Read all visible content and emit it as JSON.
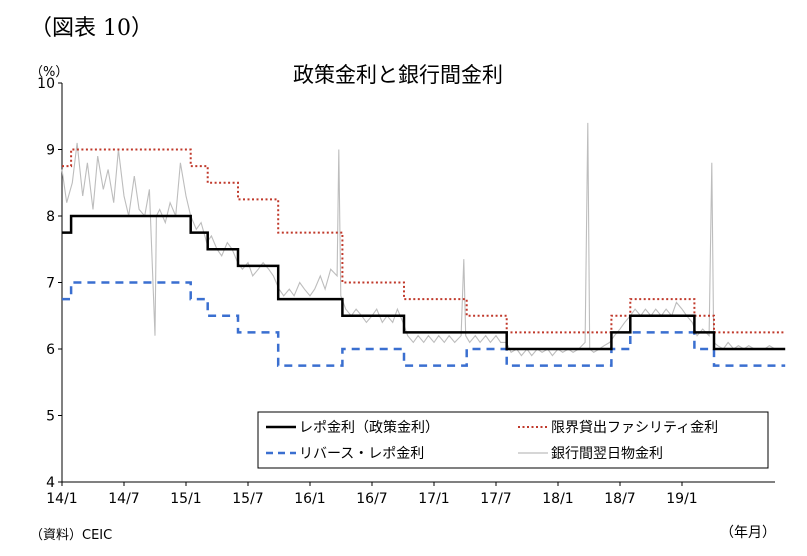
{
  "figure_label": "（図表 10）",
  "source_note": "（資料）CEIC",
  "chart_data": {
    "type": "line",
    "title": "政策金利と銀行間金利",
    "ylabel": "（%）",
    "xlabel": "（年月）",
    "ylim": [
      4,
      10
    ],
    "yticks": [
      4,
      5,
      6,
      7,
      8,
      9,
      10
    ],
    "xlim": [
      "2014-01",
      "2019-10"
    ],
    "xtick_labels": [
      "14/1",
      "14/7",
      "15/1",
      "15/7",
      "16/1",
      "16/7",
      "17/1",
      "17/7",
      "18/1",
      "18/7",
      "19/1"
    ],
    "grid": false,
    "legend_position": "bottom-right",
    "series": [
      {
        "name": "レポ金利（政策金利）",
        "style": "solid",
        "color": "#000000",
        "steps": [
          [
            "2014-01-01",
            7.75
          ],
          [
            "2014-01-28",
            8.0
          ],
          [
            "2015-01-15",
            7.75
          ],
          [
            "2015-03-04",
            7.5
          ],
          [
            "2015-06-02",
            7.25
          ],
          [
            "2015-09-29",
            6.75
          ],
          [
            "2016-04-05",
            6.5
          ],
          [
            "2016-10-04",
            6.25
          ],
          [
            "2017-08-02",
            6.0
          ],
          [
            "2018-06-06",
            6.25
          ],
          [
            "2018-08-01",
            6.5
          ],
          [
            "2019-02-07",
            6.25
          ],
          [
            "2019-04-04",
            6.0
          ],
          [
            "2019-10-31",
            6.0
          ]
        ]
      },
      {
        "name": "限界貸出ファシリティ金利",
        "style": "dotted",
        "color": "#c0392b",
        "steps": [
          [
            "2014-01-01",
            8.75
          ],
          [
            "2014-01-28",
            9.0
          ],
          [
            "2015-01-15",
            8.75
          ],
          [
            "2015-03-04",
            8.5
          ],
          [
            "2015-06-02",
            8.25
          ],
          [
            "2015-09-29",
            7.75
          ],
          [
            "2016-04-05",
            7.0
          ],
          [
            "2016-10-04",
            6.75
          ],
          [
            "2017-04-06",
            6.5
          ],
          [
            "2017-08-02",
            6.25
          ],
          [
            "2018-06-06",
            6.5
          ],
          [
            "2018-08-01",
            6.75
          ],
          [
            "2019-02-07",
            6.5
          ],
          [
            "2019-04-04",
            6.25
          ],
          [
            "2019-10-31",
            6.25
          ]
        ]
      },
      {
        "name": "リバース・レポ金利",
        "style": "dashed",
        "color": "#3a6fd0",
        "steps": [
          [
            "2014-01-01",
            6.75
          ],
          [
            "2014-01-28",
            7.0
          ],
          [
            "2015-01-15",
            6.75
          ],
          [
            "2015-03-04",
            6.5
          ],
          [
            "2015-06-02",
            6.25
          ],
          [
            "2015-09-29",
            5.75
          ],
          [
            "2016-04-05",
            6.0
          ],
          [
            "2016-10-04",
            5.75
          ],
          [
            "2017-04-06",
            6.0
          ],
          [
            "2017-08-02",
            5.75
          ],
          [
            "2018-06-06",
            6.0
          ],
          [
            "2018-08-01",
            6.25
          ],
          [
            "2019-02-07",
            6.0
          ],
          [
            "2019-04-04",
            5.75
          ],
          [
            "2019-10-31",
            5.75
          ]
        ]
      },
      {
        "name": "銀行間翌日物金利",
        "style": "solid",
        "color": "#bdbdbd",
        "points": [
          [
            "2014-01-01",
            8.7
          ],
          [
            "2014-01-15",
            8.2
          ],
          [
            "2014-02-01",
            8.5
          ],
          [
            "2014-02-15",
            9.1
          ],
          [
            "2014-03-01",
            8.3
          ],
          [
            "2014-03-15",
            8.8
          ],
          [
            "2014-04-01",
            8.1
          ],
          [
            "2014-04-15",
            8.9
          ],
          [
            "2014-05-01",
            8.4
          ],
          [
            "2014-05-15",
            8.7
          ],
          [
            "2014-06-01",
            8.2
          ],
          [
            "2014-06-15",
            9.0
          ],
          [
            "2014-07-01",
            8.3
          ],
          [
            "2014-07-15",
            8.0
          ],
          [
            "2014-08-01",
            8.6
          ],
          [
            "2014-08-15",
            8.1
          ],
          [
            "2014-09-01",
            8.0
          ],
          [
            "2014-09-15",
            8.4
          ],
          [
            "2014-10-01",
            6.2
          ],
          [
            "2014-10-05",
            8.0
          ],
          [
            "2014-10-15",
            8.1
          ],
          [
            "2014-11-01",
            7.9
          ],
          [
            "2014-11-15",
            8.2
          ],
          [
            "2014-12-01",
            8.0
          ],
          [
            "2014-12-15",
            8.8
          ],
          [
            "2015-01-01",
            8.3
          ],
          [
            "2015-01-15",
            8.0
          ],
          [
            "2015-02-01",
            7.8
          ],
          [
            "2015-02-15",
            7.9
          ],
          [
            "2015-03-01",
            7.6
          ],
          [
            "2015-03-15",
            7.7
          ],
          [
            "2015-04-01",
            7.5
          ],
          [
            "2015-04-15",
            7.4
          ],
          [
            "2015-05-01",
            7.6
          ],
          [
            "2015-05-15",
            7.5
          ],
          [
            "2015-06-01",
            7.3
          ],
          [
            "2015-06-15",
            7.2
          ],
          [
            "2015-07-01",
            7.3
          ],
          [
            "2015-07-15",
            7.1
          ],
          [
            "2015-08-01",
            7.2
          ],
          [
            "2015-08-15",
            7.3
          ],
          [
            "2015-09-01",
            7.2
          ],
          [
            "2015-09-15",
            7.1
          ],
          [
            "2015-10-01",
            6.9
          ],
          [
            "2015-10-15",
            6.8
          ],
          [
            "2015-11-01",
            6.9
          ],
          [
            "2015-11-15",
            6.8
          ],
          [
            "2015-12-01",
            7.0
          ],
          [
            "2015-12-15",
            6.9
          ],
          [
            "2016-01-01",
            6.8
          ],
          [
            "2016-01-15",
            6.9
          ],
          [
            "2016-02-01",
            7.1
          ],
          [
            "2016-02-15",
            6.9
          ],
          [
            "2016-03-01",
            7.2
          ],
          [
            "2016-03-20",
            7.1
          ],
          [
            "2016-03-25",
            9.0
          ],
          [
            "2016-03-31",
            6.8
          ],
          [
            "2016-04-15",
            6.6
          ],
          [
            "2016-05-01",
            6.5
          ],
          [
            "2016-05-15",
            6.6
          ],
          [
            "2016-06-01",
            6.5
          ],
          [
            "2016-06-15",
            6.4
          ],
          [
            "2016-07-01",
            6.5
          ],
          [
            "2016-07-15",
            6.6
          ],
          [
            "2016-08-01",
            6.4
          ],
          [
            "2016-08-15",
            6.5
          ],
          [
            "2016-09-01",
            6.4
          ],
          [
            "2016-09-15",
            6.6
          ],
          [
            "2016-10-01",
            6.4
          ],
          [
            "2016-10-15",
            6.2
          ],
          [
            "2016-11-01",
            6.1
          ],
          [
            "2016-11-15",
            6.2
          ],
          [
            "2016-12-01",
            6.1
          ],
          [
            "2016-12-15",
            6.2
          ],
          [
            "2017-01-01",
            6.1
          ],
          [
            "2017-01-15",
            6.2
          ],
          [
            "2017-02-01",
            6.1
          ],
          [
            "2017-02-15",
            6.2
          ],
          [
            "2017-03-01",
            6.1
          ],
          [
            "2017-03-20",
            6.2
          ],
          [
            "2017-03-28",
            7.35
          ],
          [
            "2017-04-03",
            6.2
          ],
          [
            "2017-04-15",
            6.1
          ],
          [
            "2017-05-01",
            6.2
          ],
          [
            "2017-05-15",
            6.1
          ],
          [
            "2017-06-01",
            6.2
          ],
          [
            "2017-06-15",
            6.1
          ],
          [
            "2017-07-01",
            6.2
          ],
          [
            "2017-07-15",
            6.1
          ],
          [
            "2017-08-01",
            6.1
          ],
          [
            "2017-08-15",
            5.95
          ],
          [
            "2017-09-01",
            6.0
          ],
          [
            "2017-09-15",
            5.9
          ],
          [
            "2017-10-01",
            6.0
          ],
          [
            "2017-10-15",
            5.9
          ],
          [
            "2017-11-01",
            6.0
          ],
          [
            "2017-11-15",
            5.95
          ],
          [
            "2017-12-01",
            6.0
          ],
          [
            "2017-12-15",
            5.9
          ],
          [
            "2018-01-01",
            6.0
          ],
          [
            "2018-01-15",
            5.95
          ],
          [
            "2018-02-01",
            6.0
          ],
          [
            "2018-02-15",
            5.95
          ],
          [
            "2018-03-01",
            6.0
          ],
          [
            "2018-03-20",
            6.1
          ],
          [
            "2018-03-28",
            9.4
          ],
          [
            "2018-04-03",
            6.0
          ],
          [
            "2018-04-15",
            5.95
          ],
          [
            "2018-05-01",
            6.0
          ],
          [
            "2018-05-15",
            6.05
          ],
          [
            "2018-06-01",
            6.1
          ],
          [
            "2018-06-15",
            6.2
          ],
          [
            "2018-07-01",
            6.3
          ],
          [
            "2018-07-15",
            6.4
          ],
          [
            "2018-08-01",
            6.5
          ],
          [
            "2018-08-15",
            6.6
          ],
          [
            "2018-09-01",
            6.5
          ],
          [
            "2018-09-15",
            6.6
          ],
          [
            "2018-10-01",
            6.5
          ],
          [
            "2018-10-15",
            6.6
          ],
          [
            "2018-11-01",
            6.5
          ],
          [
            "2018-11-15",
            6.6
          ],
          [
            "2018-12-01",
            6.5
          ],
          [
            "2018-12-15",
            6.7
          ],
          [
            "2019-01-01",
            6.6
          ],
          [
            "2019-01-15",
            6.5
          ],
          [
            "2019-02-01",
            6.4
          ],
          [
            "2019-02-15",
            6.2
          ],
          [
            "2019-03-01",
            6.3
          ],
          [
            "2019-03-20",
            6.2
          ],
          [
            "2019-03-28",
            8.8
          ],
          [
            "2019-04-03",
            6.1
          ],
          [
            "2019-04-15",
            6.05
          ],
          [
            "2019-05-01",
            6.0
          ],
          [
            "2019-05-15",
            6.1
          ],
          [
            "2019-06-01",
            6.0
          ],
          [
            "2019-06-15",
            6.05
          ],
          [
            "2019-07-01",
            6.0
          ],
          [
            "2019-07-15",
            6.05
          ],
          [
            "2019-08-01",
            6.0
          ],
          [
            "2019-08-15",
            6.0
          ],
          [
            "2019-09-01",
            6.0
          ],
          [
            "2019-09-15",
            6.05
          ],
          [
            "2019-10-01",
            6.0
          ],
          [
            "2019-10-31",
            6.0
          ]
        ]
      }
    ]
  }
}
